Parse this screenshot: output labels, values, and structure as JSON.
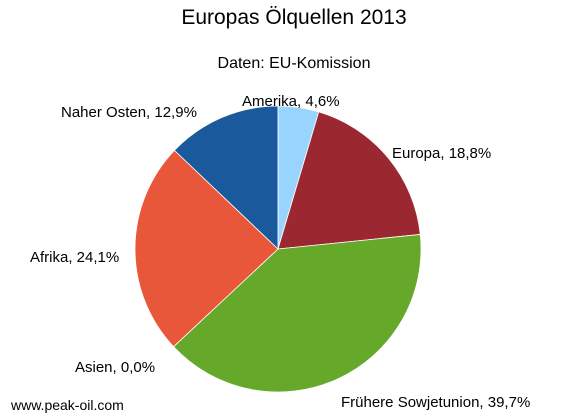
{
  "watermark": "www.peak-oil.com",
  "chart_data": {
    "type": "pie",
    "title": "Europas Ölquellen 2013",
    "subtitle": "Daten:  EU-Komission",
    "start": "12 o'clock, clockwise",
    "slices": [
      {
        "name": "Amerika",
        "value": 4.6,
        "label": "Amerika, 4,6%",
        "color": "#99d4ff"
      },
      {
        "name": "Europa",
        "value": 18.8,
        "label": "Europa, 18,8%",
        "color": "#9b2830"
      },
      {
        "name": "Frühere Sowjetunion",
        "value": 39.7,
        "label": "Frühere Sowjetunion, 39,7%",
        "color": "#66a82a"
      },
      {
        "name": "Asien",
        "value": 0.0,
        "label": "Asien, 0,0%",
        "color": "#e8632f"
      },
      {
        "name": "Afrika",
        "value": 24.1,
        "label": "Afrika, 24,1%",
        "color": "#e8573a"
      },
      {
        "name": "Naher Osten",
        "value": 12.9,
        "label": "Naher Osten, 12,9%",
        "color": "#1a5a9c"
      }
    ]
  }
}
